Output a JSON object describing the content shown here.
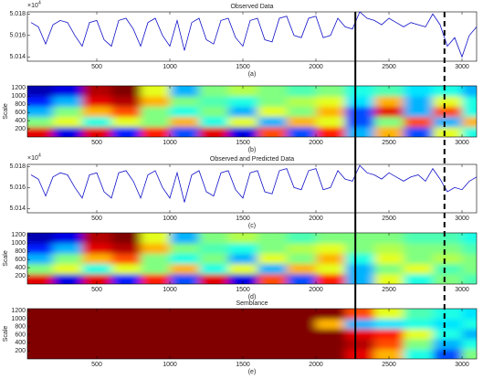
{
  "chart_data": [
    {
      "type": "line",
      "title": "Observed Data",
      "caption": "(a)",
      "multiplier": "×10",
      "multiplier_exp": "4",
      "color": "#1010c8",
      "xlim": [
        25,
        3100
      ],
      "xticks": [
        500,
        1000,
        1500,
        2000,
        2500,
        3000
      ],
      "ylim": [
        5.0136,
        5.0182
      ],
      "yticks": [
        5.014,
        5.016,
        5.018
      ],
      "x": [
        50,
        100,
        150,
        200,
        250,
        300,
        350,
        400,
        450,
        500,
        550,
        600,
        650,
        700,
        750,
        800,
        850,
        900,
        950,
        1000,
        1050,
        1100,
        1150,
        1200,
        1250,
        1300,
        1350,
        1400,
        1450,
        1500,
        1550,
        1600,
        1650,
        1700,
        1750,
        1800,
        1850,
        1900,
        1950,
        2000,
        2050,
        2100,
        2150,
        2200,
        2250,
        2300,
        2350,
        2400,
        2450,
        2500,
        2550,
        2600,
        2650,
        2700,
        2750,
        2800,
        2850,
        2900,
        2950,
        3000,
        3050,
        3100
      ],
      "values": [
        5.0172,
        5.0168,
        5.0152,
        5.017,
        5.0174,
        5.0172,
        5.016,
        5.015,
        5.0172,
        5.0174,
        5.0156,
        5.015,
        5.0174,
        5.0176,
        5.0166,
        5.015,
        5.0172,
        5.0176,
        5.016,
        5.015,
        5.0174,
        5.0146,
        5.0172,
        5.0176,
        5.0156,
        5.0152,
        5.0174,
        5.0176,
        5.0158,
        5.015,
        5.0174,
        5.0176,
        5.0156,
        5.0154,
        5.0176,
        5.0178,
        5.016,
        5.0158,
        5.0176,
        5.0178,
        5.0158,
        5.016,
        5.0176,
        5.0168,
        5.0166,
        5.0182,
        5.0176,
        5.0174,
        5.017,
        5.0176,
        5.0172,
        5.0168,
        5.0172,
        5.017,
        5.0168,
        5.018,
        5.017,
        5.015,
        5.0158,
        5.014,
        5.016,
        5.0168
      ]
    },
    {
      "type": "heatmap",
      "caption": "(b)",
      "ylabel": "Scale",
      "xlim": [
        25,
        3100
      ],
      "xticks": [
        500,
        1000,
        1500,
        2000,
        2500,
        3000
      ],
      "ylim": [
        0,
        1250
      ],
      "yticks": [
        200,
        400,
        600,
        800,
        1000,
        1200
      ],
      "x": [
        100,
        300,
        500,
        700,
        900,
        1100,
        1300,
        1500,
        1700,
        1900,
        2100,
        2300,
        2500,
        2700,
        2900,
        3100
      ],
      "y": [
        125,
        375,
        625,
        875,
        1125
      ],
      "z": [
        [
          0.9,
          0.1,
          0.9,
          0.15,
          0.85,
          0.2,
          0.9,
          0.1,
          0.8,
          0.2,
          0.85,
          0.3,
          0.7,
          0.2,
          0.6,
          0.4
        ],
        [
          0.5,
          0.6,
          0.4,
          0.6,
          0.5,
          0.7,
          0.4,
          0.6,
          0.3,
          0.7,
          0.6,
          0.2,
          0.5,
          0.8,
          0.3,
          0.7
        ],
        [
          0.3,
          0.5,
          0.7,
          0.8,
          0.5,
          0.4,
          0.5,
          0.3,
          0.6,
          0.5,
          0.7,
          0.2,
          0.9,
          0.3,
          0.8,
          0.4
        ],
        [
          0.15,
          0.3,
          0.9,
          0.95,
          0.7,
          0.5,
          0.45,
          0.4,
          0.5,
          0.55,
          0.6,
          0.35,
          0.7,
          0.3,
          0.6,
          0.4
        ],
        [
          0.05,
          0.1,
          0.95,
          1,
          0.6,
          0.3,
          0.5,
          0.55,
          0.5,
          0.45,
          0.5,
          0.4,
          0.45,
          0.35,
          0.4,
          0.3
        ]
      ]
    },
    {
      "type": "line",
      "title": "Observed and Predicted Data",
      "caption": "(c)",
      "multiplier": "×10",
      "multiplier_exp": "4",
      "color": "#1010c8",
      "xlim": [
        25,
        3100
      ],
      "xticks": [
        500,
        1000,
        1500,
        2000,
        2500,
        3000
      ],
      "ylim": [
        5.0136,
        5.0182
      ],
      "yticks": [
        5.014,
        5.016,
        5.018
      ],
      "x": [
        50,
        100,
        150,
        200,
        250,
        300,
        350,
        400,
        450,
        500,
        550,
        600,
        650,
        700,
        750,
        800,
        850,
        900,
        950,
        1000,
        1050,
        1100,
        1150,
        1200,
        1250,
        1300,
        1350,
        1400,
        1450,
        1500,
        1550,
        1600,
        1650,
        1700,
        1750,
        1800,
        1850,
        1900,
        1950,
        2000,
        2050,
        2100,
        2150,
        2200,
        2250,
        2300,
        2350,
        2400,
        2450,
        2500,
        2550,
        2600,
        2650,
        2700,
        2750,
        2800,
        2850,
        2900,
        2950,
        3000,
        3050,
        3100
      ],
      "values": [
        5.0172,
        5.0168,
        5.0152,
        5.017,
        5.0174,
        5.0172,
        5.016,
        5.015,
        5.0172,
        5.0174,
        5.0156,
        5.015,
        5.0174,
        5.0176,
        5.0166,
        5.015,
        5.0172,
        5.0176,
        5.016,
        5.015,
        5.0174,
        5.0146,
        5.0172,
        5.0176,
        5.0156,
        5.0152,
        5.0174,
        5.0176,
        5.0158,
        5.015,
        5.0174,
        5.0176,
        5.0156,
        5.0154,
        5.0176,
        5.0178,
        5.016,
        5.0158,
        5.0176,
        5.0178,
        5.0158,
        5.016,
        5.0176,
        5.0168,
        5.0166,
        5.0181,
        5.0174,
        5.0172,
        5.0168,
        5.0174,
        5.017,
        5.0166,
        5.017,
        5.0172,
        5.0166,
        5.0178,
        5.0168,
        5.0156,
        5.016,
        5.0158,
        5.0166,
        5.017
      ]
    },
    {
      "type": "heatmap",
      "caption": "(d)",
      "ylabel": "Scale",
      "xlim": [
        25,
        3100
      ],
      "xticks": [
        500,
        1000,
        1500,
        2000,
        2500,
        3000
      ],
      "ylim": [
        0,
        1250
      ],
      "yticks": [
        200,
        400,
        600,
        800,
        1000,
        1200
      ],
      "x": [
        100,
        300,
        500,
        700,
        900,
        1100,
        1300,
        1500,
        1700,
        1900,
        2100,
        2300,
        2500,
        2700,
        2900,
        3100
      ],
      "y": [
        125,
        375,
        625,
        875,
        1125
      ],
      "z": [
        [
          0.9,
          0.1,
          0.9,
          0.15,
          0.85,
          0.2,
          0.9,
          0.1,
          0.8,
          0.2,
          0.85,
          0.3,
          0.6,
          0.4,
          0.5,
          0.45
        ],
        [
          0.5,
          0.6,
          0.4,
          0.6,
          0.5,
          0.7,
          0.4,
          0.6,
          0.3,
          0.7,
          0.6,
          0.3,
          0.5,
          0.6,
          0.45,
          0.5
        ],
        [
          0.3,
          0.5,
          0.7,
          0.8,
          0.5,
          0.4,
          0.5,
          0.3,
          0.6,
          0.5,
          0.7,
          0.4,
          0.6,
          0.5,
          0.55,
          0.5
        ],
        [
          0.15,
          0.3,
          0.9,
          0.95,
          0.7,
          0.5,
          0.45,
          0.4,
          0.5,
          0.55,
          0.6,
          0.5,
          0.55,
          0.5,
          0.5,
          0.45
        ],
        [
          0.05,
          0.1,
          0.95,
          1,
          0.6,
          0.3,
          0.5,
          0.55,
          0.5,
          0.45,
          0.5,
          0.5,
          0.5,
          0.45,
          0.45,
          0.4
        ]
      ]
    },
    {
      "type": "heatmap",
      "title": "Semblance",
      "caption": "(e)",
      "ylabel": "Scale",
      "xlim": [
        25,
        3100
      ],
      "xticks": [
        500,
        1000,
        1500,
        2000,
        2500,
        3000
      ],
      "ylim": [
        0,
        1250
      ],
      "yticks": [
        200,
        400,
        600,
        800,
        1000,
        1200
      ],
      "x": [
        100,
        300,
        500,
        700,
        900,
        1100,
        1300,
        1500,
        1700,
        1900,
        2100,
        2300,
        2500,
        2700,
        2900,
        3100
      ],
      "y": [
        125,
        375,
        625,
        875,
        1125
      ],
      "z": [
        [
          1,
          1,
          1,
          1,
          1,
          1,
          1,
          1,
          1,
          1,
          1,
          0.9,
          0.7,
          0.4,
          0.2,
          0.5
        ],
        [
          1,
          1,
          1,
          1,
          1,
          1,
          1,
          1,
          1,
          1,
          1,
          0.95,
          0.8,
          0.5,
          0.3,
          0.4
        ],
        [
          1,
          1,
          1,
          1,
          1,
          1,
          1,
          1,
          1,
          1,
          1,
          0.9,
          0.85,
          0.6,
          0.4,
          0.3
        ],
        [
          1,
          1,
          1,
          1,
          1,
          1,
          1,
          1,
          1,
          1,
          0.7,
          0.3,
          0.35,
          0.4,
          0.35,
          0.4
        ],
        [
          1,
          1,
          1,
          1,
          1,
          1,
          1,
          1,
          1,
          1,
          1,
          0.8,
          0.6,
          0.45,
          0.4,
          0.35
        ]
      ]
    }
  ],
  "vlines": {
    "x": [
      2270,
      2880
    ],
    "styles": [
      "solid",
      "dashed"
    ]
  }
}
